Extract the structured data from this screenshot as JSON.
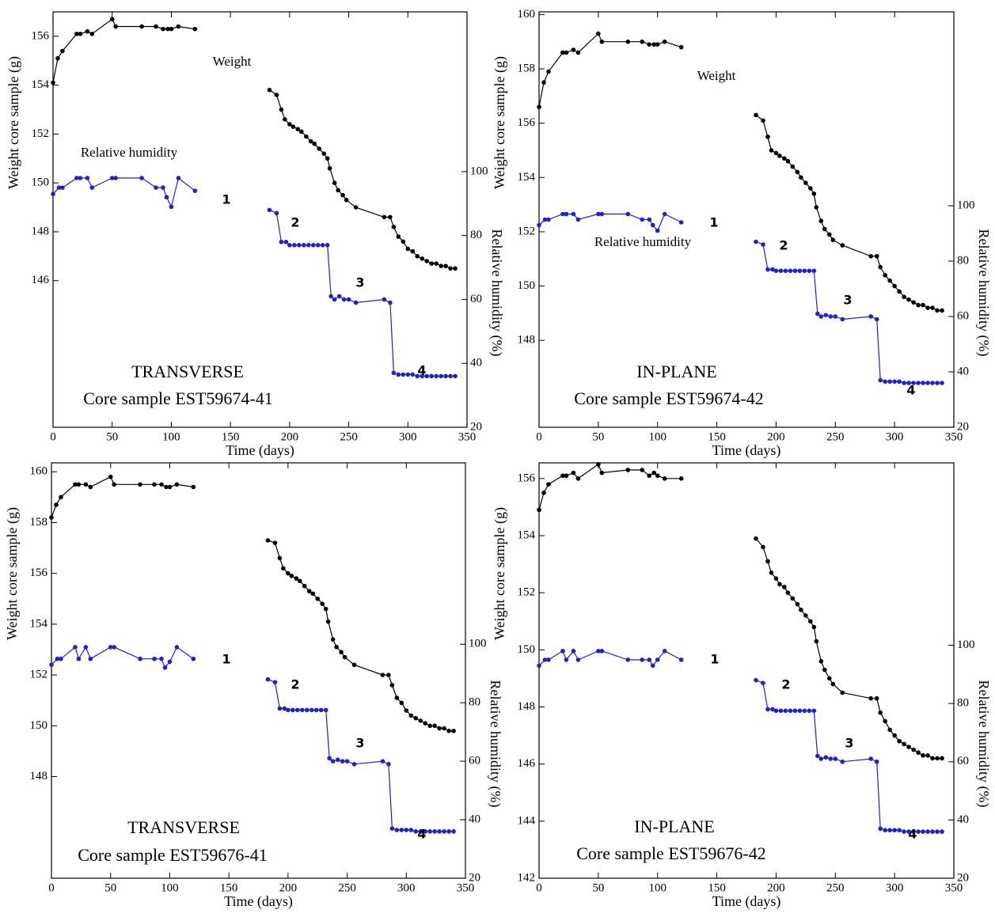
{
  "chart_data": [
    {
      "type": "line",
      "xlabel": "Time (days)",
      "ylabel": "Weight core sample (g)",
      "y2label": "Relative humidity (%)",
      "xlim": [
        0,
        350
      ],
      "xticks": [
        0,
        50,
        100,
        150,
        200,
        250,
        300,
        350
      ],
      "ylim": [
        140,
        157
      ],
      "yticks": [
        146,
        148,
        150,
        152,
        154,
        156
      ],
      "y2lim": [
        20,
        150
      ],
      "y2ticks": [
        20,
        40,
        60,
        80,
        100
      ],
      "annotations": [
        "Weight",
        "Relative humidity",
        "1",
        "2",
        "3",
        "4",
        "TRANSVERSE",
        "Core sample EST59674-41"
      ],
      "series": [
        {
          "color": "#000000",
          "axis": "y",
          "x": [
            0,
            4,
            8,
            20,
            23,
            29,
            33,
            50,
            53,
            75,
            87,
            93,
            97,
            100,
            106,
            120,
            150,
            183,
            189,
            193,
            196,
            200,
            203,
            207,
            210,
            214,
            218,
            221,
            225,
            229,
            232,
            234,
            238,
            241,
            245,
            248,
            256,
            280,
            285,
            288,
            292,
            296,
            300,
            304,
            308,
            312,
            316,
            320,
            324,
            328,
            332,
            336,
            340
          ],
          "values": [
            154.1,
            155.1,
            155.4,
            156.1,
            156.1,
            156.2,
            156.1,
            156.7,
            156.4,
            156.4,
            156.4,
            156.3,
            156.3,
            156.3,
            156.4,
            156.3,
            null,
            153.8,
            153.6,
            153.0,
            152.6,
            152.4,
            152.3,
            152.2,
            152.1,
            151.9,
            151.7,
            151.6,
            151.4,
            151.2,
            151.0,
            150.6,
            150.0,
            149.7,
            149.5,
            149.3,
            149.0,
            148.6,
            148.6,
            148.2,
            147.8,
            147.6,
            147.3,
            147.2,
            147.0,
            146.9,
            146.8,
            146.7,
            146.7,
            146.6,
            146.6,
            146.5,
            146.5
          ]
        },
        {
          "color": "#1f1fd6",
          "axis": "y2",
          "x": [
            0,
            5,
            8,
            20,
            23,
            29,
            33,
            50,
            53,
            75,
            87,
            93,
            96,
            100,
            106,
            120,
            150,
            183,
            189,
            193,
            197,
            200,
            204,
            208,
            212,
            216,
            220,
            224,
            228,
            232,
            235,
            238,
            242,
            246,
            250,
            256,
            280,
            285,
            288,
            292,
            296,
            300,
            304,
            308,
            312,
            316,
            320,
            324,
            328,
            332,
            336,
            340
          ],
          "values": [
            93,
            95,
            95,
            98,
            98,
            98,
            95,
            98,
            98,
            98,
            95,
            95,
            92,
            89,
            98,
            94,
            null,
            88,
            87,
            78,
            78,
            77,
            77,
            77,
            77,
            77,
            77,
            77,
            77,
            77,
            61,
            60,
            61,
            60,
            60,
            59,
            60,
            59,
            37,
            36.5,
            36.5,
            36.5,
            36.5,
            36,
            36,
            36,
            36,
            36,
            36,
            36,
            36,
            36
          ]
        }
      ]
    },
    {
      "type": "line",
      "xlabel": "Time (days)",
      "ylabel": "Weight core sample (g)",
      "y2label": "Relative humidity (%)",
      "xlim": [
        0,
        350
      ],
      "xticks": [
        0,
        50,
        100,
        150,
        200,
        250,
        300,
        350
      ],
      "ylim": [
        144.8,
        160.1
      ],
      "yticks": [
        148,
        150,
        152,
        154,
        156,
        158,
        160
      ],
      "y2lim": [
        20,
        170
      ],
      "y2ticks": [
        20,
        40,
        60,
        80,
        100
      ],
      "annotations": [
        "Weight",
        "Relative humidity",
        "1",
        "2",
        "3",
        "4",
        "IN-PLANE",
        "Core sample EST59674-42"
      ],
      "series": [
        {
          "color": "#000000",
          "axis": "y",
          "x": [
            0,
            4,
            8,
            20,
            23,
            29,
            33,
            50,
            53,
            75,
            87,
            93,
            97,
            100,
            106,
            120,
            150,
            183,
            189,
            193,
            196,
            200,
            203,
            207,
            210,
            214,
            218,
            221,
            225,
            229,
            232,
            234,
            238,
            241,
            245,
            248,
            256,
            280,
            285,
            288,
            292,
            296,
            300,
            304,
            308,
            312,
            316,
            320,
            324,
            328,
            332,
            336,
            340
          ],
          "values": [
            156.6,
            157.5,
            157.9,
            158.6,
            158.6,
            158.7,
            158.6,
            159.3,
            159.0,
            159.0,
            159.0,
            158.9,
            158.9,
            158.9,
            159.0,
            158.8,
            null,
            156.3,
            156.1,
            155.5,
            155.0,
            154.9,
            154.8,
            154.7,
            154.6,
            154.4,
            154.2,
            154.0,
            153.8,
            153.6,
            153.4,
            152.9,
            152.4,
            152.1,
            151.9,
            151.7,
            151.5,
            151.1,
            151.1,
            150.7,
            150.4,
            150.2,
            150.0,
            149.8,
            149.6,
            149.5,
            149.4,
            149.3,
            149.3,
            149.2,
            149.2,
            149.1,
            149.1
          ]
        },
        {
          "color": "#1f1fd6",
          "axis": "y2",
          "x": [
            0,
            5,
            8,
            20,
            23,
            29,
            33,
            50,
            53,
            75,
            87,
            93,
            96,
            100,
            106,
            120,
            150,
            183,
            189,
            193,
            197,
            200,
            204,
            208,
            212,
            216,
            220,
            224,
            228,
            232,
            235,
            238,
            242,
            246,
            250,
            256,
            280,
            285,
            288,
            292,
            296,
            300,
            304,
            308,
            312,
            316,
            320,
            324,
            328,
            332,
            336,
            340
          ],
          "values": [
            93,
            95,
            95,
            97,
            97,
            97,
            95,
            97,
            97,
            97,
            95,
            95,
            93,
            91,
            97,
            94,
            null,
            87,
            86,
            77,
            77,
            76.5,
            76.5,
            76.5,
            76.5,
            76.5,
            76.5,
            76.5,
            76.5,
            76.5,
            61,
            60,
            60.5,
            60,
            60,
            59,
            60,
            59,
            37,
            36.5,
            36.5,
            36.5,
            36.5,
            36,
            36,
            36,
            36,
            36,
            36,
            36,
            36,
            36
          ]
        }
      ]
    },
    {
      "type": "line",
      "xlabel": "Time (days)",
      "ylabel": "Weight core sample (g)",
      "y2label": "Relative humidity (%)",
      "xlim": [
        0,
        350
      ],
      "xticks": [
        0,
        50,
        100,
        150,
        200,
        250,
        300,
        350
      ],
      "ylim": [
        144,
        160.35
      ],
      "yticks": [
        148,
        150,
        152,
        154,
        156,
        158,
        160
      ],
      "y2lim": [
        20,
        162
      ],
      "y2ticks": [
        20,
        40,
        60,
        80,
        100
      ],
      "annotations": [
        "1",
        "2",
        "3",
        "4",
        "TRANSVERSE",
        "Core sample EST59676-41"
      ],
      "series": [
        {
          "color": "#000000",
          "axis": "y",
          "x": [
            0,
            4,
            8,
            20,
            23,
            29,
            33,
            50,
            53,
            75,
            87,
            93,
            97,
            100,
            106,
            120,
            150,
            183,
            189,
            193,
            196,
            200,
            203,
            207,
            210,
            214,
            218,
            221,
            225,
            229,
            232,
            234,
            238,
            241,
            245,
            248,
            256,
            280,
            285,
            288,
            292,
            296,
            300,
            304,
            308,
            312,
            316,
            320,
            324,
            328,
            332,
            336,
            340
          ],
          "values": [
            158.2,
            158.7,
            159.0,
            159.5,
            159.5,
            159.5,
            159.4,
            159.8,
            159.5,
            159.5,
            159.5,
            159.5,
            159.4,
            159.4,
            159.5,
            159.4,
            null,
            157.3,
            157.2,
            156.6,
            156.2,
            156.0,
            155.9,
            155.8,
            155.7,
            155.5,
            155.3,
            155.2,
            155.0,
            154.8,
            154.6,
            154.1,
            153.4,
            153.1,
            152.9,
            152.7,
            152.4,
            152.0,
            152.0,
            151.6,
            151.1,
            150.9,
            150.6,
            150.4,
            150.3,
            150.2,
            150.1,
            150.0,
            150.0,
            149.9,
            149.9,
            149.8,
            149.8
          ]
        },
        {
          "color": "#1f1fd6",
          "axis": "y2",
          "x": [
            0,
            5,
            8,
            20,
            23,
            29,
            33,
            50,
            53,
            75,
            87,
            93,
            96,
            100,
            106,
            120,
            150,
            183,
            189,
            193,
            197,
            200,
            204,
            208,
            212,
            216,
            220,
            224,
            228,
            232,
            235,
            238,
            242,
            246,
            250,
            256,
            280,
            285,
            288,
            292,
            296,
            300,
            304,
            308,
            312,
            316,
            320,
            324,
            328,
            332,
            336,
            340
          ],
          "values": [
            93,
            95,
            95,
            99,
            95,
            99,
            95,
            99,
            99,
            95,
            95,
            95,
            92,
            94,
            99,
            95,
            null,
            88,
            87,
            78,
            78,
            77.5,
            77.5,
            77.5,
            77.5,
            77.5,
            77.5,
            77.5,
            77.5,
            77.5,
            61,
            60,
            60.5,
            60,
            60,
            59,
            60,
            59,
            37,
            36.5,
            36.5,
            36.5,
            36.5,
            36,
            36,
            36,
            36,
            36,
            36,
            36,
            36,
            36
          ]
        }
      ]
    },
    {
      "type": "line",
      "xlabel": "Time (days)",
      "ylabel": "Weight core sample (g)",
      "y2label": "Relative humidity (%)",
      "xlim": [
        0,
        350
      ],
      "xticks": [
        0,
        50,
        100,
        150,
        200,
        250,
        300,
        350
      ],
      "ylim": [
        142,
        156.55
      ],
      "yticks": [
        142,
        144,
        146,
        148,
        150,
        152,
        154,
        156
      ],
      "y2lim": [
        20,
        162.6
      ],
      "y2ticks": [
        20,
        40,
        60,
        80,
        100
      ],
      "annotations": [
        "1",
        "2",
        "3",
        "4",
        "IN-PLANE",
        "Core sample EST59676-42"
      ],
      "series": [
        {
          "color": "#000000",
          "axis": "y",
          "x": [
            0,
            4,
            8,
            20,
            23,
            29,
            33,
            50,
            53,
            75,
            87,
            93,
            97,
            100,
            106,
            120,
            150,
            183,
            189,
            193,
            196,
            200,
            203,
            207,
            210,
            214,
            218,
            221,
            225,
            229,
            232,
            234,
            238,
            241,
            245,
            248,
            256,
            280,
            285,
            288,
            292,
            296,
            300,
            304,
            308,
            312,
            316,
            320,
            324,
            328,
            332,
            336,
            340
          ],
          "values": [
            154.9,
            155.5,
            155.8,
            156.1,
            156.1,
            156.2,
            156.0,
            156.5,
            156.2,
            156.3,
            156.3,
            156.1,
            156.2,
            156.1,
            156.0,
            156.0,
            null,
            153.9,
            153.6,
            153.1,
            152.7,
            152.5,
            152.3,
            152.2,
            152.0,
            151.8,
            151.6,
            151.4,
            151.2,
            151.0,
            150.8,
            150.3,
            149.6,
            149.3,
            149.0,
            148.8,
            148.5,
            148.3,
            148.3,
            147.8,
            147.5,
            147.2,
            147.0,
            146.8,
            146.7,
            146.6,
            146.5,
            146.4,
            146.3,
            146.3,
            146.2,
            146.2,
            146.2
          ]
        },
        {
          "color": "#1f1fd6",
          "axis": "y2",
          "x": [
            0,
            5,
            8,
            20,
            23,
            29,
            33,
            50,
            53,
            75,
            87,
            93,
            96,
            100,
            106,
            120,
            150,
            183,
            189,
            193,
            197,
            200,
            204,
            208,
            212,
            216,
            220,
            224,
            228,
            232,
            235,
            238,
            242,
            246,
            250,
            256,
            280,
            285,
            288,
            292,
            296,
            300,
            304,
            308,
            312,
            316,
            320,
            324,
            328,
            332,
            336,
            340
          ],
          "values": [
            93,
            95,
            95,
            98,
            95,
            98,
            95,
            98,
            98,
            95,
            95,
            95,
            93,
            95,
            98,
            95,
            null,
            88,
            87,
            78,
            78,
            77.5,
            77.5,
            77.5,
            77.5,
            77.5,
            77.5,
            77.5,
            77.5,
            77.5,
            62,
            61,
            61.5,
            61,
            61,
            60,
            61,
            60,
            37,
            36.5,
            36.5,
            36.5,
            36.5,
            36,
            36,
            36,
            36,
            36,
            36,
            36,
            36,
            36
          ]
        }
      ]
    }
  ]
}
